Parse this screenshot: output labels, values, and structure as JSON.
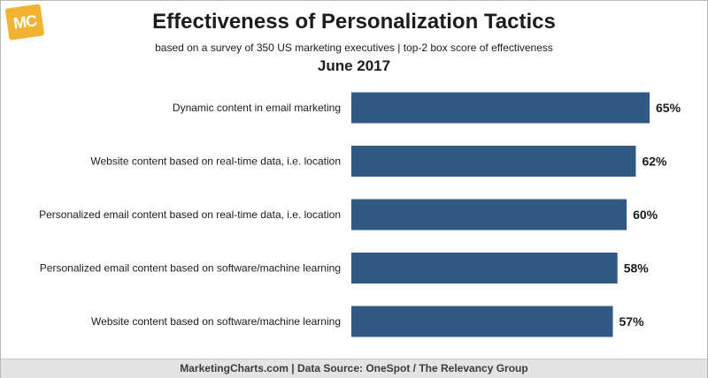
{
  "logo": {
    "text": "MC"
  },
  "header": {
    "title": "Effectiveness of Personalization Tactics",
    "subtitle": "based on a survey of 350 US marketing executives | top-2 box score of effectiveness",
    "date": "June 2017"
  },
  "chart_data": {
    "type": "bar",
    "orientation": "horizontal",
    "title": "Effectiveness of Personalization Tactics",
    "categories": [
      "Dynamic content in email marketing",
      "Website content based on real-time data, i.e. location",
      "Personalized email content based on real-time data, i.e. location",
      "Personalized email content based on software/machine learning",
      "Website content based on software/machine learning"
    ],
    "values": [
      65,
      62,
      60,
      58,
      57
    ],
    "value_labels": [
      "65%",
      "62%",
      "60%",
      "58%",
      "57%"
    ],
    "xlim": [
      0,
      65
    ],
    "grid": false,
    "legend": "none",
    "bar_color": "#325984"
  },
  "footer": {
    "text": "MarketingCharts.com | Data Source: OneSpot / The Relevancy Group"
  }
}
